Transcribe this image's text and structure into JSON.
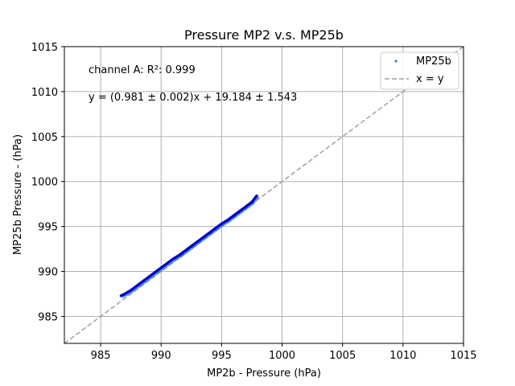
{
  "chart_data": {
    "type": "scatter",
    "title": "Pressure MP2 v.s. MP25b",
    "xlabel": "MP2b - Pressure (hPa)",
    "ylabel": "MP25b Pressure - (hPa)",
    "xlim": [
      982,
      1015
    ],
    "ylim": [
      982,
      1015
    ],
    "xticks": [
      "985",
      "990",
      "995",
      "1000",
      "1005",
      "1010",
      "1015"
    ],
    "yticks": [
      "985",
      "990",
      "995",
      "1000",
      "1005",
      "1010",
      "1015"
    ],
    "grid": true,
    "legend_position": "top-right",
    "annotations": [
      "channel A: R²: 0.999",
      "y = (0.981 ± 0.002)x + 19.184 ± 1.543"
    ],
    "series": [
      {
        "name": "MP25b",
        "kind": "scatter",
        "color": "#1f77b4",
        "fit_color": "#0000cc",
        "x": [
          986.7,
          987.0,
          987.5,
          988.0,
          988.5,
          989.0,
          989.5,
          990.0,
          990.5,
          991.0,
          991.5,
          992.0,
          992.5,
          993.0,
          993.5,
          994.0,
          994.5,
          995.0,
          995.5,
          996.0,
          996.5,
          997.0,
          997.5,
          997.9
        ],
        "y": [
          987.3,
          987.5,
          987.9,
          988.4,
          988.9,
          989.4,
          989.9,
          990.4,
          990.9,
          991.4,
          991.8,
          992.3,
          992.8,
          993.3,
          993.8,
          994.3,
          994.8,
          995.3,
          995.7,
          996.2,
          996.7,
          997.2,
          997.7,
          998.4
        ]
      },
      {
        "name": "x = y",
        "kind": "line",
        "color": "#a0a0a0",
        "x": [
          982,
          1015
        ],
        "y": [
          982,
          1015
        ]
      }
    ]
  }
}
